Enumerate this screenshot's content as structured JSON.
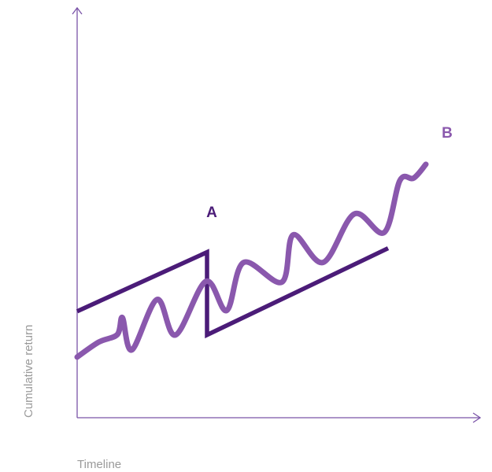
{
  "chart_data": {
    "type": "line",
    "title": "",
    "xlabel": "Timeline",
    "ylabel": "Cumulative return",
    "ticks": false,
    "grid": false,
    "colors": {
      "axis": "#7b54a8",
      "A": "#4b1c78",
      "B": "#8a58ad"
    },
    "series": [
      {
        "name": "A",
        "style": "straight",
        "points": [
          [
            0,
            27
          ],
          [
            33,
            42
          ],
          [
            33,
            21
          ],
          [
            79,
            43
          ]
        ]
      },
      {
        "name": "B",
        "style": "wavy",
        "points": [
          [
            0,
            15.4
          ],
          [
            5.5,
            19.2
          ],
          [
            10.2,
            21.1
          ],
          [
            11.5,
            25.4
          ],
          [
            13.9,
            17.2
          ],
          [
            20.3,
            30
          ],
          [
            25,
            21
          ],
          [
            32.7,
            34.6
          ],
          [
            38,
            27.2
          ],
          [
            42.3,
            39.4
          ],
          [
            52,
            34.4
          ],
          [
            54.9,
            46.4
          ],
          [
            62.5,
            39.4
          ],
          [
            70.4,
            51.7
          ],
          [
            78,
            47
          ],
          [
            82,
            60.2
          ],
          [
            85.5,
            60.8
          ],
          [
            88.6,
            64.3
          ]
        ]
      }
    ]
  }
}
